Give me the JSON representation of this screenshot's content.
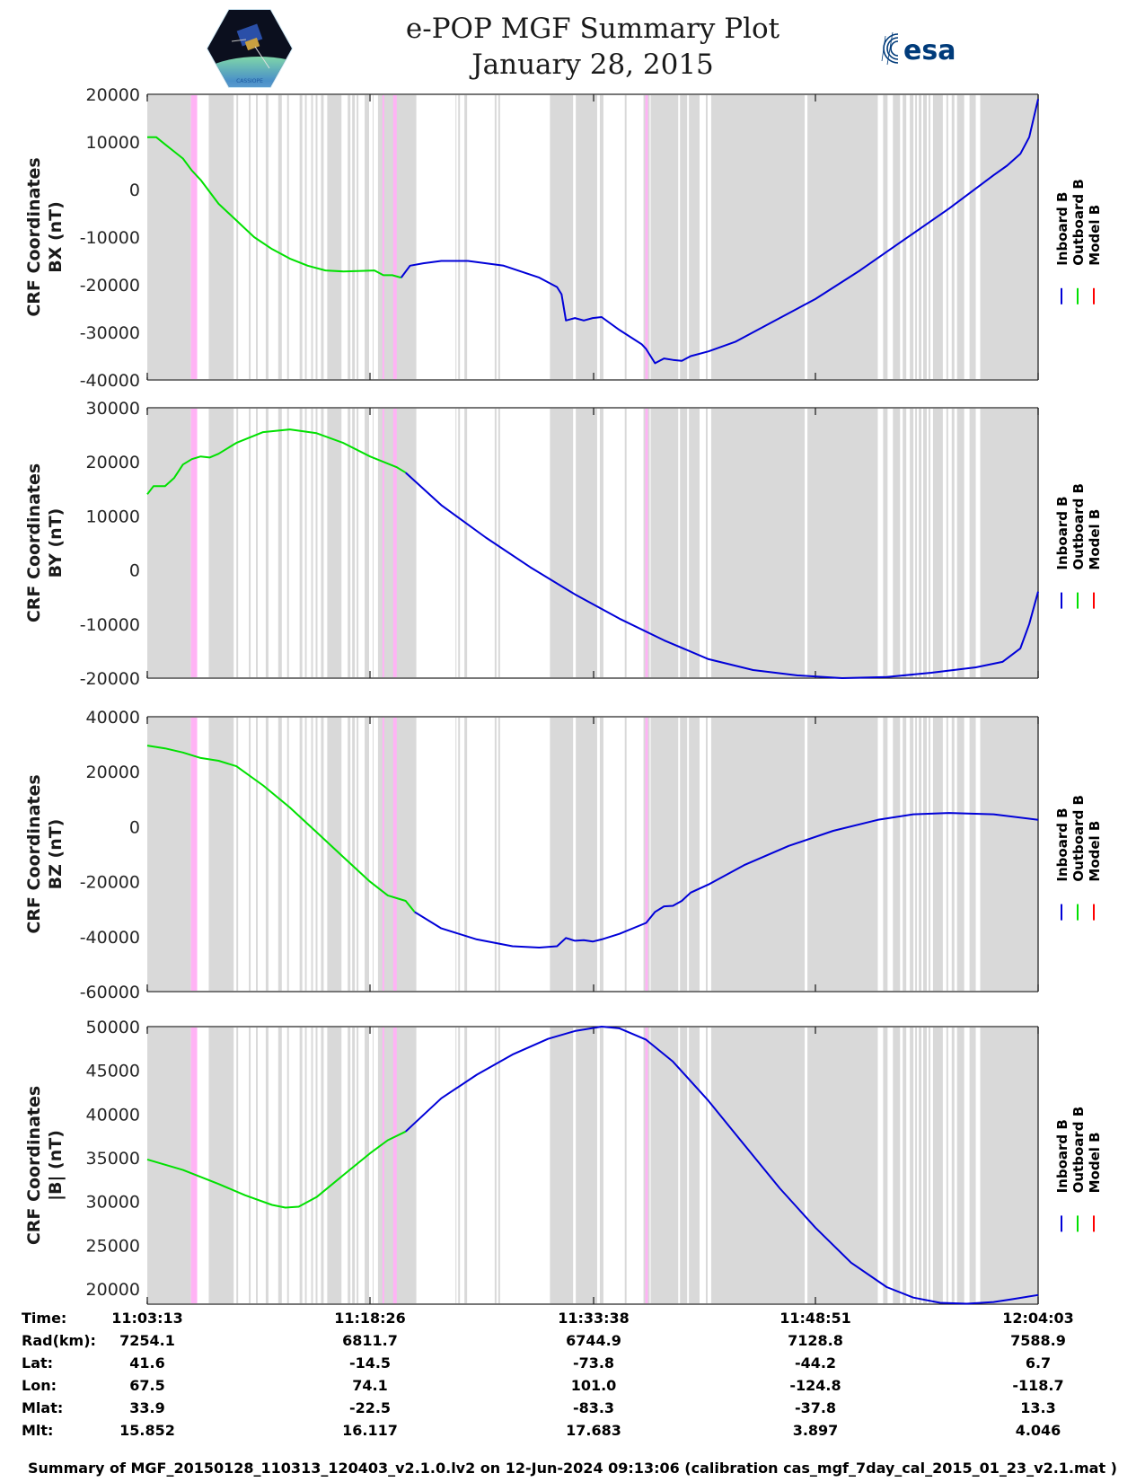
{
  "header": {
    "title_line1": "e-POP MGF Summary Plot",
    "title_line2": "January 28, 2015",
    "left_logo": "cassiope-mission-logo",
    "left_logo_caption": "CASSIOPE",
    "right_logo": "esa-logo",
    "right_logo_text": "esa"
  },
  "colors": {
    "inboard": "#0000d8",
    "outboard": "#00e000",
    "model": "#ff0000",
    "gap_shade": "#d9d9d9",
    "flag_shade": "#ffb3f5",
    "axis": "#262626"
  },
  "chart_data": {
    "type": "line",
    "x_unit": "UT time",
    "x_range": [
      "11:03:13",
      "12:04:03"
    ],
    "x_range_seconds": [
      0,
      3650
    ],
    "x_ticks": [
      "11:03:13",
      "11:18:26",
      "11:33:38",
      "11:48:51",
      "12:04:03"
    ],
    "legend": {
      "placement": "right",
      "entries": [
        {
          "label": "Inboard B",
          "color": "#0000d8"
        },
        {
          "label": "Outboard B",
          "color": "#00e000"
        },
        {
          "label": "Model B",
          "color": "#ff0000"
        }
      ]
    },
    "shading": {
      "description": "vertical bands marking data flags (gray) and special intervals (pink), x as fraction of time axis",
      "gray_bands": [
        [
          0.0,
          0.049
        ],
        [
          0.069,
          0.097
        ],
        [
          0.1,
          0.102
        ],
        [
          0.114,
          0.116
        ],
        [
          0.122,
          0.124
        ],
        [
          0.133,
          0.136
        ],
        [
          0.147,
          0.151
        ],
        [
          0.157,
          0.159
        ],
        [
          0.171,
          0.174
        ],
        [
          0.177,
          0.179
        ],
        [
          0.184,
          0.186
        ],
        [
          0.189,
          0.191
        ],
        [
          0.195,
          0.198
        ],
        [
          0.202,
          0.218
        ],
        [
          0.225,
          0.228
        ],
        [
          0.23,
          0.233
        ],
        [
          0.235,
          0.237
        ],
        [
          0.244,
          0.249
        ],
        [
          0.253,
          0.254
        ],
        [
          0.259,
          0.302
        ],
        [
          0.346,
          0.347
        ],
        [
          0.349,
          0.351
        ],
        [
          0.356,
          0.359
        ],
        [
          0.39,
          0.392
        ],
        [
          0.394,
          0.396
        ],
        [
          0.452,
          0.478
        ],
        [
          0.481,
          0.505
        ],
        [
          0.508,
          0.512
        ],
        [
          0.536,
          0.538
        ],
        [
          0.557,
          0.559
        ],
        [
          0.562,
          0.564
        ],
        [
          0.565,
          0.596
        ],
        [
          0.598,
          0.606
        ],
        [
          0.608,
          0.62
        ],
        [
          0.627,
          0.629
        ],
        [
          0.633,
          0.738
        ],
        [
          0.741,
          0.82
        ],
        [
          0.826,
          0.831
        ],
        [
          0.837,
          0.845
        ],
        [
          0.848,
          0.852
        ],
        [
          0.856,
          0.86
        ],
        [
          0.862,
          0.864
        ],
        [
          0.866,
          0.869
        ],
        [
          0.871,
          0.875
        ],
        [
          0.877,
          0.879
        ],
        [
          0.882,
          0.893
        ],
        [
          0.897,
          0.899
        ],
        [
          0.903,
          0.906
        ],
        [
          0.909,
          0.917
        ],
        [
          0.923,
          0.93
        ],
        [
          0.935,
          1.0
        ]
      ],
      "pink_bands": [
        [
          0.049,
          0.056
        ],
        [
          0.264,
          0.266
        ],
        [
          0.276,
          0.28
        ],
        [
          0.559,
          0.562
        ]
      ]
    },
    "panels": [
      {
        "id": "bx",
        "ylabel_line1": "CRF Coordinates",
        "ylabel_line2": "BX (nT)",
        "ylim": [
          -40000,
          20000
        ],
        "yticks": [
          -40000,
          -30000,
          -20000,
          -10000,
          0,
          10000,
          20000
        ],
        "series": [
          {
            "name": "Outboard B",
            "t": [
              0,
              0.01,
              0.02,
              0.03,
              0.04,
              0.05,
              0.06,
              0.08,
              0.1,
              0.12,
              0.14,
              0.16,
              0.18,
              0.2,
              0.22,
              0.24,
              0.255,
              0.265,
              0.275,
              0.285
            ],
            "values": [
              11000,
              11000,
              9500,
              8000,
              6500,
              4000,
              2000,
              -3000,
              -6500,
              -10000,
              -12500,
              -14500,
              -16000,
              -17000,
              -17200,
              -17100,
              -17000,
              -18000,
              -18000,
              -18500
            ]
          },
          {
            "name": "Inboard B",
            "t": [
              0.285,
              0.295,
              0.31,
              0.33,
              0.36,
              0.4,
              0.44,
              0.46,
              0.465,
              0.47,
              0.48,
              0.49,
              0.5,
              0.51,
              0.53,
              0.555,
              0.56,
              0.57,
              0.58,
              0.59,
              0.6,
              0.61,
              0.63,
              0.66,
              0.7,
              0.75,
              0.8,
              0.85,
              0.9,
              0.95,
              0.965,
              0.98,
              0.99,
              1.0
            ],
            "values": [
              -18500,
              -16000,
              -15500,
              -15000,
              -15000,
              -16000,
              -18500,
              -20500,
              -22000,
              -27500,
              -27000,
              -27500,
              -27000,
              -26800,
              -29500,
              -32500,
              -33500,
              -36500,
              -35500,
              -35800,
              -36000,
              -35000,
              -34000,
              -32000,
              -28000,
              -23000,
              -17000,
              -10500,
              -4000,
              3000,
              5000,
              7500,
              11000,
              19000
            ]
          }
        ]
      },
      {
        "id": "by",
        "ylabel_line1": "CRF Coordinates",
        "ylabel_line2": "BY (nT)",
        "ylim": [
          -20000,
          30000
        ],
        "yticks": [
          -20000,
          -10000,
          0,
          10000,
          20000,
          30000
        ],
        "series": [
          {
            "name": "Outboard B",
            "t": [
              0,
              0.007,
              0.02,
              0.03,
              0.04,
              0.05,
              0.06,
              0.07,
              0.08,
              0.1,
              0.13,
              0.16,
              0.19,
              0.22,
              0.25,
              0.28,
              0.29
            ],
            "values": [
              14000,
              15500,
              15500,
              17000,
              19500,
              20500,
              21000,
              20800,
              21500,
              23500,
              25500,
              26000,
              25300,
              23500,
              21000,
              19000,
              18000
            ]
          },
          {
            "name": "Inboard B",
            "t": [
              0.29,
              0.33,
              0.38,
              0.43,
              0.48,
              0.53,
              0.58,
              0.63,
              0.68,
              0.73,
              0.78,
              0.83,
              0.88,
              0.93,
              0.96,
              0.98,
              0.99,
              1.0
            ],
            "values": [
              18000,
              12000,
              6000,
              500,
              -4500,
              -9000,
              -13000,
              -16500,
              -18500,
              -19500,
              -20000,
              -19800,
              -19000,
              -18000,
              -17000,
              -14500,
              -10000,
              -4000
            ]
          }
        ]
      },
      {
        "id": "bz",
        "ylabel_line1": "CRF Coordinates",
        "ylabel_line2": "BZ (nT)",
        "ylim": [
          -60000,
          40000
        ],
        "yticks": [
          -60000,
          -40000,
          -20000,
          0,
          20000,
          40000
        ],
        "series": [
          {
            "name": "Outboard B",
            "t": [
              0,
              0.02,
              0.04,
              0.06,
              0.08,
              0.1,
              0.13,
              0.16,
              0.19,
              0.22,
              0.25,
              0.27,
              0.28,
              0.29,
              0.3
            ],
            "values": [
              29500,
              28500,
              27000,
              25000,
              24000,
              22000,
              15000,
              7000,
              -2000,
              -11000,
              -20000,
              -25000,
              -26000,
              -27000,
              -31000
            ]
          },
          {
            "name": "Inboard B",
            "t": [
              0.3,
              0.33,
              0.37,
              0.41,
              0.44,
              0.46,
              0.47,
              0.48,
              0.49,
              0.5,
              0.51,
              0.53,
              0.56,
              0.57,
              0.58,
              0.59,
              0.6,
              0.61,
              0.63,
              0.67,
              0.72,
              0.77,
              0.82,
              0.86,
              0.9,
              0.95,
              1.0
            ],
            "values": [
              -31000,
              -37000,
              -41000,
              -43500,
              -44000,
              -43500,
              -40500,
              -41500,
              -41300,
              -41800,
              -41000,
              -39000,
              -35000,
              -31000,
              -29000,
              -28800,
              -27000,
              -24000,
              -21000,
              -14000,
              -7000,
              -1500,
              2500,
              4500,
              5000,
              4500,
              2500
            ]
          }
        ]
      },
      {
        "id": "bmag",
        "ylabel_line1": "CRF Coordinates",
        "ylabel_line2": "|B| (nT)",
        "ylim": [
          18250,
          50000
        ],
        "yticks": [
          20000,
          25000,
          30000,
          35000,
          40000,
          45000,
          50000
        ],
        "series": [
          {
            "name": "Outboard B",
            "t": [
              0,
              0.04,
              0.08,
              0.11,
              0.14,
              0.155,
              0.17,
              0.19,
              0.22,
              0.25,
              0.27,
              0.29
            ],
            "values": [
              34800,
              33600,
              32000,
              30700,
              29600,
              29300,
              29400,
              30500,
              33000,
              35500,
              37000,
              38000
            ]
          },
          {
            "name": "Inboard B",
            "t": [
              0.29,
              0.33,
              0.37,
              0.41,
              0.45,
              0.48,
              0.51,
              0.53,
              0.56,
              0.59,
              0.63,
              0.67,
              0.71,
              0.75,
              0.79,
              0.83,
              0.86,
              0.89,
              0.92,
              0.95,
              0.97,
              1.0
            ],
            "values": [
              38000,
              41800,
              44500,
              46800,
              48600,
              49500,
              50000,
              49800,
              48500,
              46000,
              41500,
              36500,
              31500,
              27000,
              23000,
              20200,
              19000,
              18400,
              18300,
              18500,
              18800,
              19300
            ]
          }
        ]
      }
    ]
  },
  "info_table": {
    "rows": [
      {
        "label": "Time:",
        "values": [
          "11:03:13",
          "11:18:26",
          "11:33:38",
          "11:48:51",
          "12:04:03"
        ]
      },
      {
        "label": "Rad(km):",
        "values": [
          "7254.1",
          "6811.7",
          "6744.9",
          "7128.8",
          "7588.9"
        ]
      },
      {
        "label": "Lat:",
        "values": [
          "41.6",
          "-14.5",
          "-73.8",
          "-44.2",
          "6.7"
        ]
      },
      {
        "label": "Lon:",
        "values": [
          "67.5",
          "74.1",
          "101.0",
          "-124.8",
          "-118.7"
        ]
      },
      {
        "label": "Mlat:",
        "values": [
          "33.9",
          "-22.5",
          "-83.3",
          "-37.8",
          "13.3"
        ]
      },
      {
        "label": "Mlt:",
        "values": [
          "15.852",
          "16.117",
          "17.683",
          "3.897",
          "4.046"
        ]
      }
    ]
  },
  "footer": {
    "text": "Summary of MGF_20150128_110313_120403_v2.1.0.lv2 on 12-Jun-2024 09:13:06 (calibration cas_mgf_7day_cal_2015_01_23_v2.1.mat )"
  }
}
